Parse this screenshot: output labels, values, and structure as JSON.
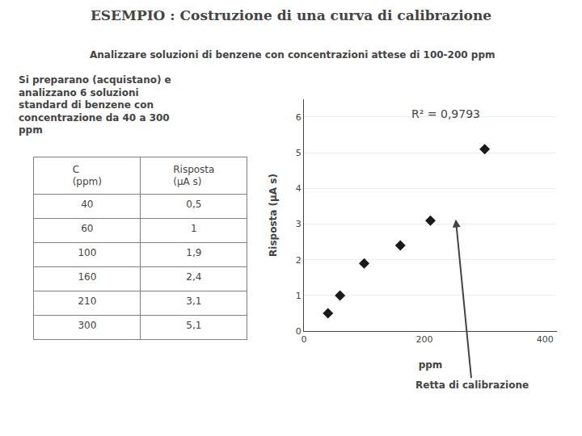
{
  "chart_data": [
    {
      "type": "scatter",
      "title": "ESEMPIO : Costruzione di una curva di calibrazione",
      "subtitle": "Analizzare soluzioni di benzene con concentrazioni attese di 100-200 ppm",
      "annotations": [
        "Si preparano (acquistano) e\nanalizzano 6 soluzioni\nstandard di benzene con\nconcentrazione da 40 a 300\nppm",
        "R² = 0,9793",
        "Retta di calibrazione"
      ],
      "xlabel": "ppm",
      "ylabel": "Risposta (μA s)",
      "x": [
        40,
        60,
        100,
        160,
        210,
        300
      ],
      "values": [
        0.5,
        1.0,
        1.9,
        2.4,
        3.1,
        5.1
      ],
      "color": "#1a1a1a",
      "marker": "diamond",
      "xlim": [
        0,
        420
      ],
      "ylim": [
        0,
        6.5
      ],
      "xticks": [
        0,
        200,
        400
      ],
      "yticks": [
        0,
        1,
        2,
        3,
        4,
        5,
        6
      ],
      "grid": "y"
    },
    {
      "type": "table",
      "columns": [
        "C\n(ppm)",
        "Risposta\n(μA s)"
      ],
      "rows": [
        [
          "40",
          "0,5"
        ],
        [
          "60",
          "1"
        ],
        [
          "100",
          "1,9"
        ],
        [
          "160",
          "2,4"
        ],
        [
          "210",
          "3,1"
        ],
        [
          "300",
          "5,1"
        ]
      ]
    }
  ]
}
